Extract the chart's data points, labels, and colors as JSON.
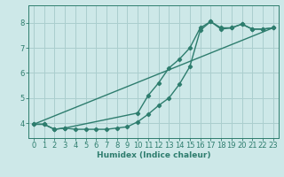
{
  "line1_x": [
    0,
    1,
    2,
    3,
    4,
    5,
    6,
    7,
    8,
    9,
    10,
    11,
    12,
    13,
    14,
    15,
    16,
    17,
    18,
    19,
    20,
    21,
    22,
    23
  ],
  "line1_y": [
    3.95,
    3.95,
    3.75,
    3.8,
    3.75,
    3.75,
    3.75,
    3.75,
    3.8,
    3.85,
    4.05,
    4.35,
    4.7,
    5.0,
    5.55,
    6.25,
    7.7,
    8.05,
    7.75,
    7.8,
    7.95,
    7.75,
    7.75,
    7.8
  ],
  "line2_x": [
    0,
    1,
    2,
    3,
    10,
    11,
    12,
    13,
    14,
    15,
    16,
    17,
    18,
    19,
    20,
    21,
    22,
    23
  ],
  "line2_y": [
    3.95,
    3.95,
    3.75,
    3.8,
    4.4,
    5.1,
    5.6,
    6.2,
    6.55,
    7.0,
    7.8,
    8.05,
    7.8,
    7.8,
    7.95,
    7.75,
    7.75,
    7.8
  ],
  "line3_x": [
    0,
    23
  ],
  "line3_y": [
    3.95,
    7.8
  ],
  "bg_color": "#cde8e8",
  "line_color": "#2e7d6e",
  "grid_color": "#aacece",
  "xlabel": "Humidex (Indice chaleur)",
  "xlim": [
    -0.5,
    23.5
  ],
  "ylim": [
    3.4,
    8.7
  ],
  "yticks": [
    4,
    5,
    6,
    7,
    8
  ],
  "xticks": [
    0,
    1,
    2,
    3,
    4,
    5,
    6,
    7,
    8,
    9,
    10,
    11,
    12,
    13,
    14,
    15,
    16,
    17,
    18,
    19,
    20,
    21,
    22,
    23
  ],
  "marker": "D",
  "marker_size": 2.2,
  "linewidth": 1.0,
  "tick_fontsize": 6.0,
  "xlabel_fontsize": 6.5
}
